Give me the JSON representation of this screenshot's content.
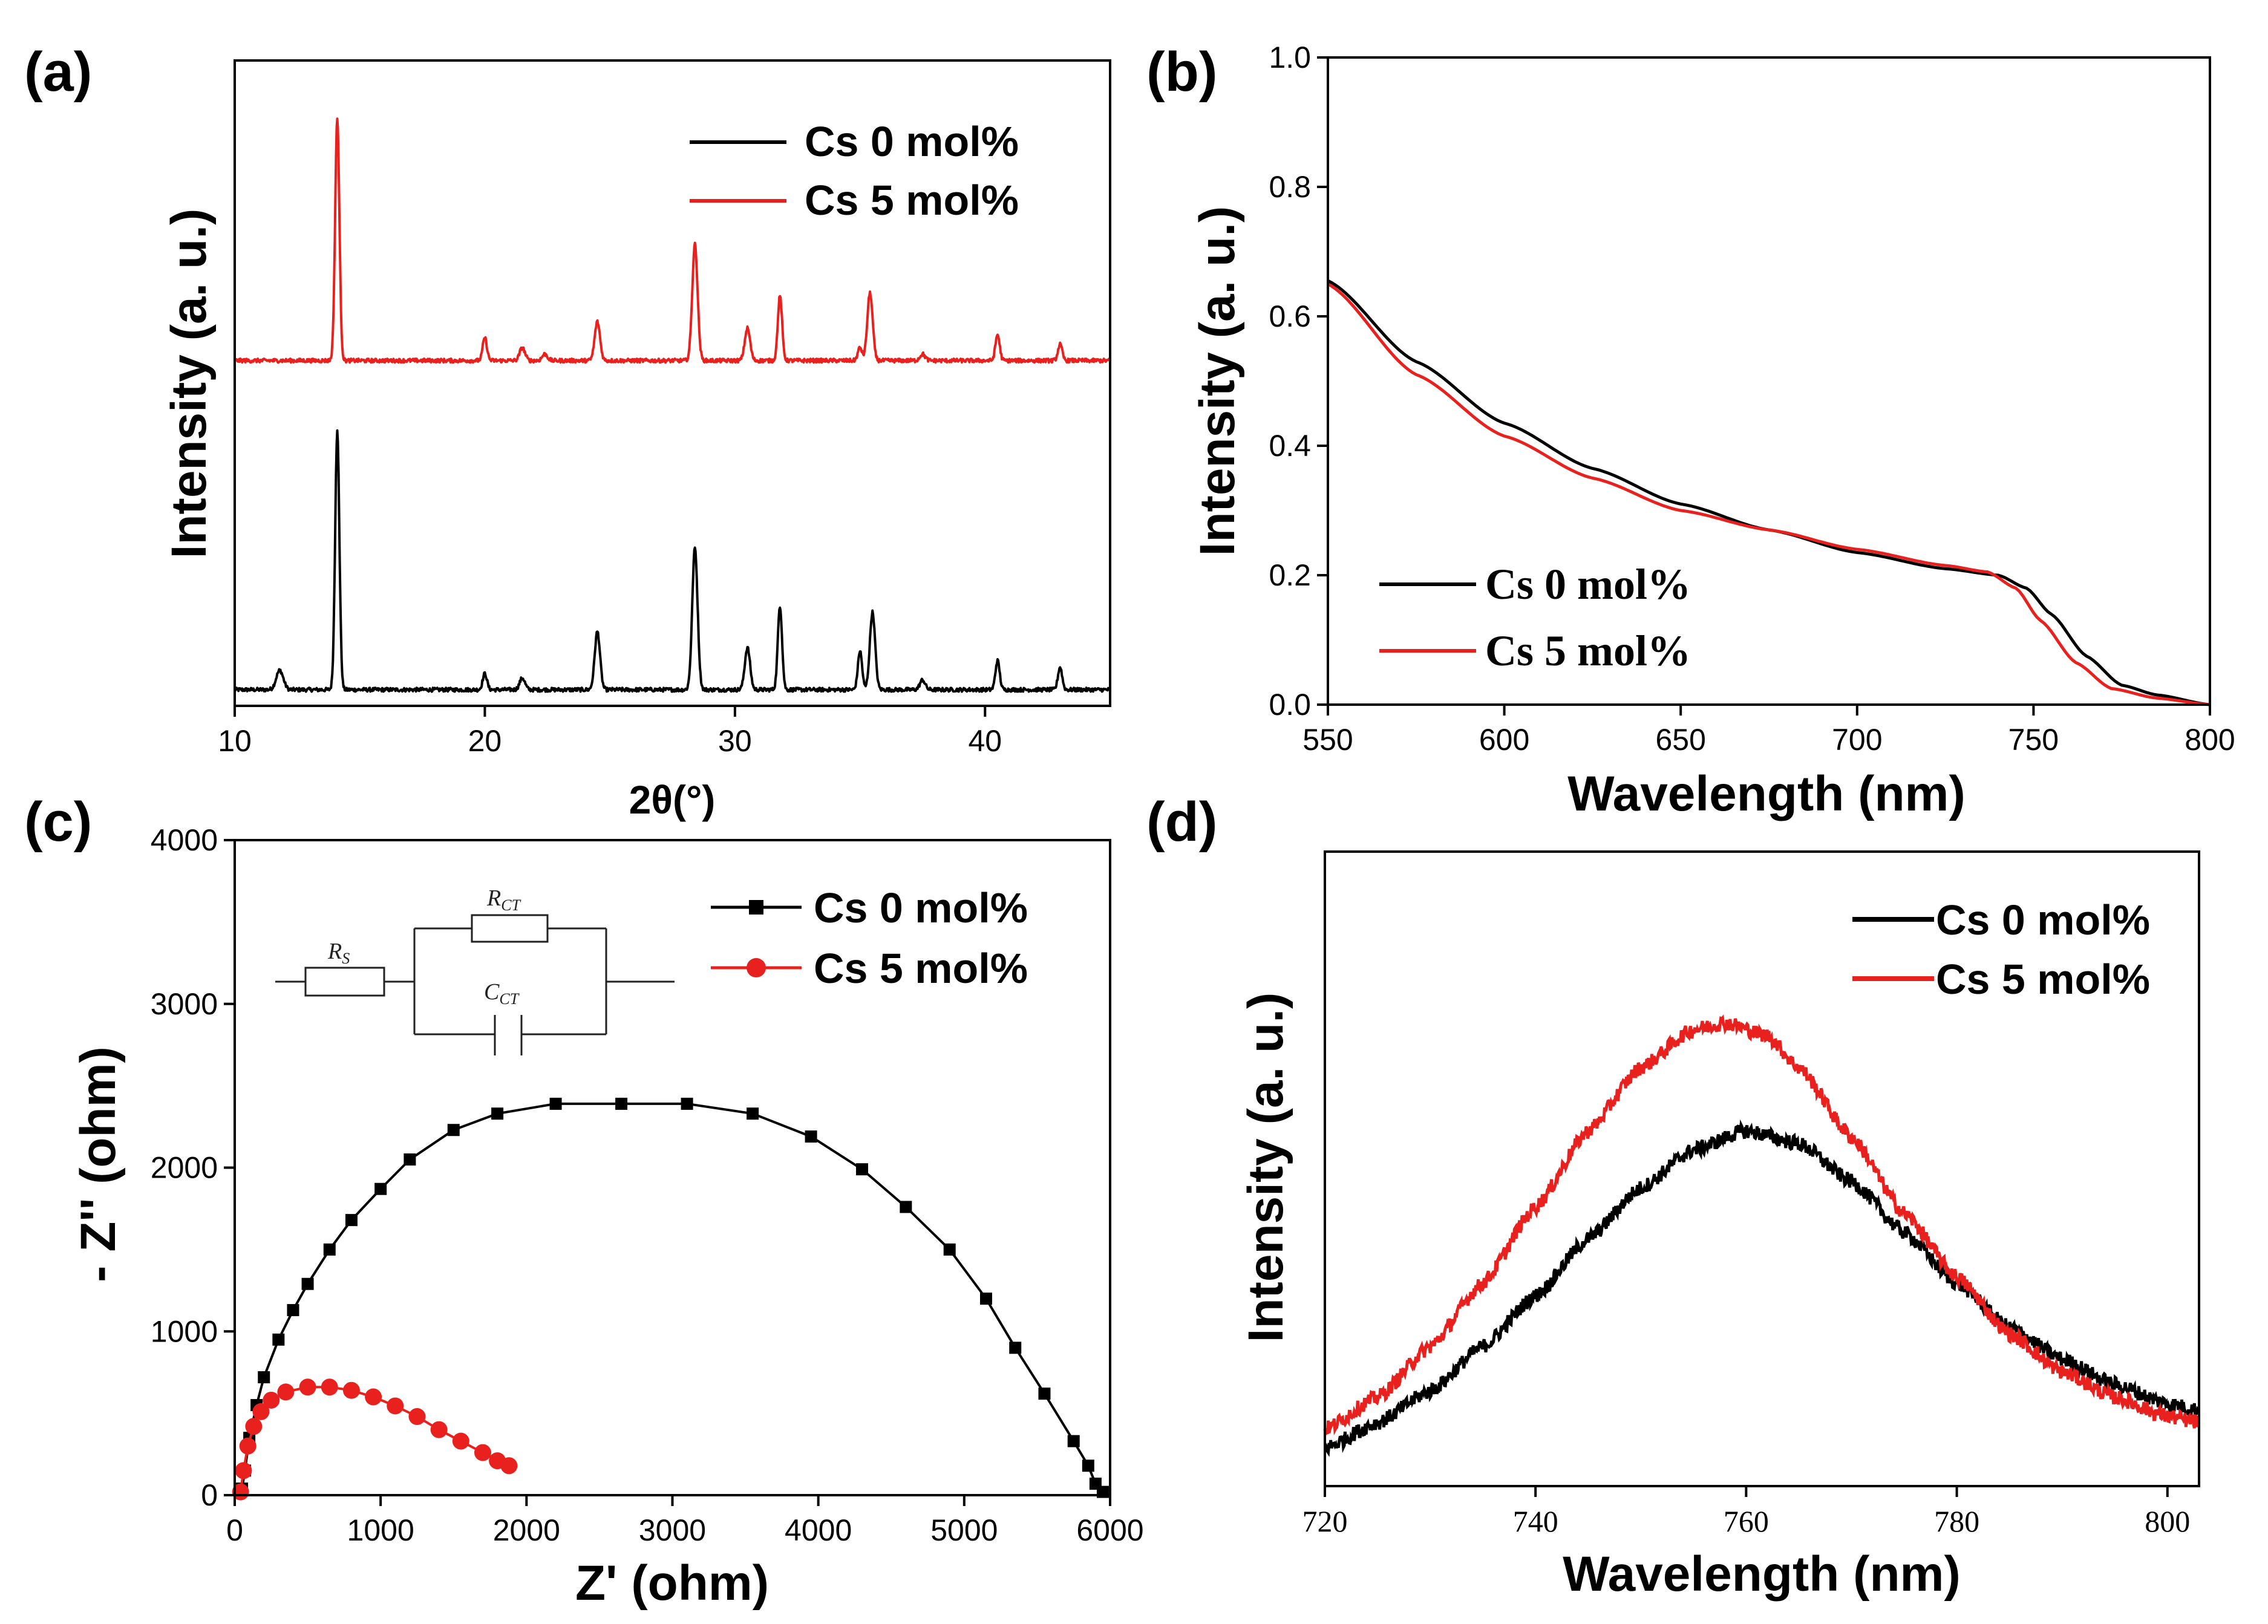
{
  "colors": {
    "black": "#000000",
    "red": "#e8211e",
    "axis": "#000000"
  },
  "chart_data": [
    {
      "id": "a",
      "type": "line",
      "panel_label": "(a)",
      "xlabel": "2θ(°)",
      "ylabel": "Intensity (a. u.)",
      "xlim": [
        10,
        45
      ],
      "ylim": [
        0,
        10
      ],
      "xticks": [
        10,
        20,
        30,
        40
      ],
      "xtick_labels": [
        "10",
        "20",
        "30",
        "40"
      ],
      "yticks_visible": false,
      "legend": {
        "position": "top-right",
        "entries": [
          "Cs 0 mol%",
          "Cs 5 mol%"
        ]
      },
      "series": [
        {
          "name": "Cs 0 mol%",
          "color": "#000000",
          "baseline": 0.25,
          "noise": 0.03,
          "peaks": [
            [
              11.8,
              0.3,
              0.2
            ],
            [
              14.1,
              4.0,
              0.12
            ],
            [
              20.0,
              0.25,
              0.12
            ],
            [
              21.5,
              0.18,
              0.15
            ],
            [
              24.5,
              0.9,
              0.15
            ],
            [
              28.4,
              2.2,
              0.15
            ],
            [
              30.5,
              0.65,
              0.15
            ],
            [
              31.8,
              1.3,
              0.12
            ],
            [
              35.0,
              0.6,
              0.12
            ],
            [
              35.5,
              1.2,
              0.15
            ],
            [
              37.5,
              0.15,
              0.15
            ],
            [
              40.5,
              0.45,
              0.12
            ],
            [
              43.0,
              0.35,
              0.12
            ]
          ]
        },
        {
          "name": "Cs 5 mol%",
          "color": "#e8211e",
          "baseline": 5.35,
          "noise": 0.03,
          "peaks": [
            [
              14.1,
              3.75,
              0.12
            ],
            [
              20.0,
              0.35,
              0.12
            ],
            [
              21.5,
              0.2,
              0.15
            ],
            [
              22.4,
              0.1,
              0.15
            ],
            [
              24.5,
              0.6,
              0.15
            ],
            [
              28.4,
              1.8,
              0.15
            ],
            [
              30.5,
              0.5,
              0.15
            ],
            [
              31.8,
              1.0,
              0.12
            ],
            [
              35.0,
              0.2,
              0.12
            ],
            [
              35.4,
              1.05,
              0.15
            ],
            [
              37.5,
              0.1,
              0.15
            ],
            [
              40.5,
              0.4,
              0.12
            ],
            [
              43.0,
              0.25,
              0.12
            ]
          ]
        }
      ]
    },
    {
      "id": "b",
      "type": "line",
      "panel_label": "(b)",
      "xlabel": "Wavelength (nm)",
      "ylabel": "Intensity (a. u.)",
      "xlim": [
        550,
        800
      ],
      "ylim": [
        0.0,
        1.0
      ],
      "xticks": [
        550,
        600,
        650,
        700,
        750,
        800
      ],
      "xtick_labels": [
        "550",
        "600",
        "650",
        "700",
        "750",
        "800"
      ],
      "yticks": [
        0.0,
        0.2,
        0.4,
        0.6,
        0.8,
        1.0
      ],
      "ytick_labels": [
        "0.0",
        "0.2",
        "0.4",
        "0.6",
        "0.8",
        "1.0"
      ],
      "legend": {
        "position": "bottom-left",
        "entries": [
          "Cs 0 mol%",
          "Cs 5 mol%"
        ]
      },
      "series": [
        {
          "name": "Cs 0 mol%",
          "color": "#000000",
          "x": [
            550,
            575,
            600,
            625,
            650,
            675,
            700,
            725,
            740,
            748,
            755,
            765,
            775,
            785,
            800
          ],
          "y": [
            0.655,
            0.53,
            0.435,
            0.365,
            0.31,
            0.27,
            0.235,
            0.21,
            0.2,
            0.18,
            0.14,
            0.075,
            0.03,
            0.015,
            0.0
          ]
        },
        {
          "name": "Cs 5 mol%",
          "color": "#e8211e",
          "x": [
            550,
            575,
            600,
            625,
            650,
            675,
            700,
            725,
            737,
            745,
            752,
            762,
            772,
            785,
            800
          ],
          "y": [
            0.65,
            0.51,
            0.415,
            0.35,
            0.3,
            0.27,
            0.24,
            0.215,
            0.205,
            0.18,
            0.13,
            0.065,
            0.025,
            0.01,
            0.0
          ]
        }
      ]
    },
    {
      "id": "c",
      "type": "scatter",
      "panel_label": "(c)",
      "xlabel": "Z' (ohm)",
      "ylabel": "- Z'' (ohm)",
      "xlim": [
        0,
        6000
      ],
      "ylim": [
        0,
        4000
      ],
      "xticks": [
        0,
        1000,
        2000,
        3000,
        4000,
        5000,
        6000
      ],
      "xtick_labels": [
        "0",
        "1000",
        "2000",
        "3000",
        "4000",
        "5000",
        "6000"
      ],
      "yticks": [
        0,
        1000,
        2000,
        3000,
        4000
      ],
      "ytick_labels": [
        "0",
        "1000",
        "2000",
        "3000",
        "4000"
      ],
      "legend": {
        "position": "top-right",
        "entries": [
          "Cs 0 mol%",
          "Cs 5 mol%"
        ]
      },
      "inset": {
        "labels": [
          "R",
          "R",
          "C"
        ],
        "subscripts": [
          "S",
          "CT",
          "CT"
        ]
      },
      "series": [
        {
          "name": "Cs 0 mol%",
          "color": "#000000",
          "marker": "square",
          "x": [
            50,
            70,
            100,
            150,
            200,
            300,
            400,
            500,
            650,
            800,
            1000,
            1200,
            1500,
            1800,
            2200,
            2650,
            3100,
            3550,
            3950,
            4300,
            4600,
            4900,
            5150,
            5350,
            5550,
            5750,
            5850,
            5900,
            5950
          ],
          "y": [
            40,
            150,
            350,
            550,
            720,
            950,
            1130,
            1290,
            1500,
            1680,
            1870,
            2050,
            2230,
            2330,
            2390,
            2390,
            2390,
            2330,
            2190,
            1990,
            1760,
            1500,
            1200,
            900,
            620,
            330,
            180,
            70,
            20
          ]
        },
        {
          "name": "Cs 5 mol%",
          "color": "#e8211e",
          "marker": "circle",
          "x": [
            40,
            60,
            90,
            130,
            180,
            250,
            350,
            500,
            650,
            800,
            950,
            1100,
            1250,
            1400,
            1550,
            1700,
            1800,
            1880
          ],
          "y": [
            20,
            150,
            300,
            420,
            510,
            580,
            630,
            660,
            660,
            640,
            600,
            545,
            480,
            400,
            330,
            260,
            210,
            180
          ]
        }
      ]
    },
    {
      "id": "d",
      "type": "line",
      "panel_label": "(d)",
      "xlabel": "Wavelength (nm)",
      "ylabel": "Intensity (a. u.)",
      "xlim": [
        720,
        803
      ],
      "ylim": [
        0,
        1.0
      ],
      "xticks": [
        720,
        740,
        760,
        780,
        800
      ],
      "xtick_labels": [
        "720",
        "740",
        "760",
        "780",
        "800"
      ],
      "yticks_visible": false,
      "legend": {
        "position": "top-right",
        "entries": [
          "Cs 0 mol%",
          "Cs 5 mol%"
        ]
      },
      "series": [
        {
          "name": "Cs 0 mol%",
          "color": "#000000",
          "noise": 0.012,
          "x": [
            720,
            725,
            730,
            735,
            740,
            745,
            750,
            755,
            760,
            765,
            770,
            775,
            780,
            785,
            790,
            795,
            800,
            803
          ],
          "y": [
            0.06,
            0.1,
            0.15,
            0.22,
            0.3,
            0.39,
            0.47,
            0.53,
            0.56,
            0.54,
            0.48,
            0.4,
            0.32,
            0.25,
            0.2,
            0.16,
            0.13,
            0.12
          ]
        },
        {
          "name": "Cs 5 mol%",
          "color": "#e8211e",
          "noise": 0.012,
          "x": [
            720,
            725,
            730,
            735,
            740,
            745,
            750,
            755,
            758,
            762,
            765,
            770,
            775,
            780,
            785,
            790,
            795,
            800,
            803
          ],
          "y": [
            0.09,
            0.14,
            0.22,
            0.32,
            0.44,
            0.56,
            0.66,
            0.72,
            0.73,
            0.71,
            0.66,
            0.55,
            0.43,
            0.33,
            0.24,
            0.18,
            0.14,
            0.11,
            0.1
          ]
        }
      ]
    }
  ]
}
